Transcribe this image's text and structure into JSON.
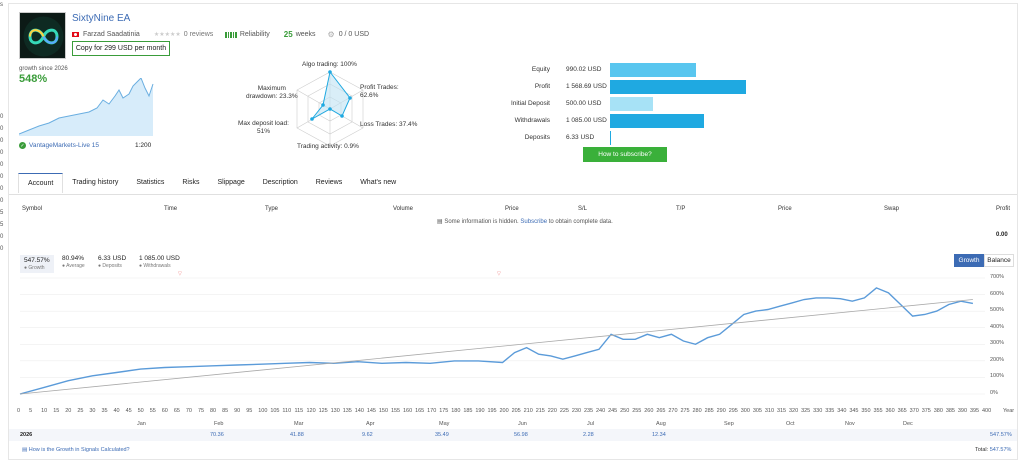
{
  "gutter_labels": [
    "s",
    "0",
    "0",
    "0",
    "0",
    "0",
    "0",
    "0",
    "0",
    "5",
    "5",
    "0",
    "0"
  ],
  "header": {
    "title": "SixtyNine EA",
    "author": "Farzad Saadatinia",
    "reviews": "0 reviews",
    "reliability": "Reliability",
    "weeks_value": "25",
    "weeks_label": "weeks",
    "subscribers": "0 / 0 USD",
    "copy_button": "Copy for 299 USD per month"
  },
  "growth": {
    "label": "growth since 2026",
    "value": "548%"
  },
  "account": {
    "name": "VantageMarkets-Live 15",
    "leverage": "1:200"
  },
  "radar": {
    "algo": "Algo trading: 100%",
    "profit": "Profit Trades:\n62.6%",
    "loss": "Loss Trades: 37.4%",
    "activity": "Trading activity: 0.9%",
    "load": "Max deposit load:\n51%",
    "drawdown": "Maximum\ndrawdown: 23.3%",
    "values": [
      1.0,
      0.626,
      0.374,
      0.009,
      0.51,
      0.233
    ]
  },
  "balance": [
    {
      "label": "Equity",
      "value": "990.02 USD",
      "amount": 990.02,
      "color": "#59c6ef"
    },
    {
      "label": "Profit",
      "value": "1 568.69 USD",
      "amount": 1568.69,
      "color": "#1fa9e1"
    },
    {
      "label": "Initial Deposit",
      "value": "500.00 USD",
      "amount": 500.0,
      "color": "#a7e2f6"
    },
    {
      "label": "Withdrawals",
      "value": "1 085.00 USD",
      "amount": 1085.0,
      "color": "#1fa9e1"
    },
    {
      "label": "Deposits",
      "value": "6.33 USD",
      "amount": 6.33,
      "color": "#1fa9e1"
    }
  ],
  "subscribe": "How to subscribe?",
  "tabs": [
    "Account",
    "Trading history",
    "Statistics",
    "Risks",
    "Slippage",
    "Description",
    "Reviews",
    "What's new"
  ],
  "table": {
    "headers": [
      "Symbol",
      "Time",
      "Type",
      "Volume",
      "Price",
      "S/L",
      "T/P",
      "Price",
      "Swap",
      "Profit"
    ],
    "notice_pre": "Some information is hidden.",
    "notice_link": "Subscribe",
    "notice_post": "to obtain complete data.",
    "total": "0.00"
  },
  "stats": [
    {
      "value": "547.57%",
      "label": "Growth"
    },
    {
      "value": "80.94%",
      "label": "Average"
    },
    {
      "value": "6.33 USD",
      "label": "Deposits"
    },
    {
      "value": "1 085.00 USD",
      "label": "Withdrawals"
    }
  ],
  "chart_toggle": {
    "growth": "Growth",
    "balance": "Balance"
  },
  "chart_data": {
    "type": "line",
    "title": "",
    "xlabel": "",
    "ylabel": "",
    "ylim": [
      0,
      700
    ],
    "y_ticks": [
      "700%",
      "600%",
      "500%",
      "400%",
      "300%",
      "200%",
      "100%",
      "0%"
    ],
    "x_ticks": [
      "0",
      "5",
      "10",
      "15",
      "20",
      "25",
      "30",
      "35",
      "40",
      "45",
      "50",
      "55",
      "60",
      "65",
      "70",
      "75",
      "80",
      "85",
      "90",
      "95",
      "100",
      "105",
      "110",
      "115",
      "120",
      "125",
      "130",
      "135",
      "140",
      "145",
      "150",
      "155",
      "160",
      "165",
      "170",
      "175",
      "180",
      "185",
      "190",
      "195",
      "200",
      "205",
      "210",
      "215",
      "220",
      "225",
      "230",
      "235",
      "240",
      "245",
      "250",
      "255",
      "260",
      "265",
      "270",
      "275",
      "280",
      "285",
      "290",
      "295",
      "300",
      "305",
      "310",
      "315",
      "320",
      "325",
      "330",
      "335",
      "340",
      "345",
      "350",
      "355",
      "360",
      "365",
      "370",
      "375",
      "380",
      "385",
      "390",
      "395",
      "400"
    ],
    "x_axis_label": "Year",
    "months": [
      "Jan",
      "Feb",
      "Mar",
      "Apr",
      "May",
      "Jun",
      "Jul",
      "Aug",
      "Sep",
      "Oct",
      "Nov",
      "Dec"
    ],
    "series": [
      {
        "name": "Growth",
        "x": [
          0,
          10,
          20,
          30,
          40,
          50,
          60,
          70,
          80,
          90,
          100,
          110,
          120,
          130,
          140,
          150,
          160,
          170,
          180,
          190,
          200,
          205,
          210,
          215,
          220,
          225,
          230,
          235,
          240,
          245,
          250,
          255,
          260,
          265,
          270,
          275,
          280,
          285,
          290,
          295,
          300,
          305,
          310,
          315,
          320,
          325,
          330,
          335,
          340,
          345,
          350,
          355,
          360,
          365,
          370,
          375,
          380,
          385,
          390,
          395
        ],
        "values": [
          0,
          40,
          80,
          110,
          130,
          150,
          160,
          165,
          170,
          175,
          180,
          185,
          190,
          185,
          195,
          185,
          190,
          185,
          200,
          200,
          190,
          250,
          280,
          240,
          230,
          210,
          230,
          250,
          270,
          360,
          330,
          330,
          360,
          340,
          360,
          320,
          300,
          340,
          360,
          420,
          480,
          500,
          510,
          530,
          550,
          570,
          580,
          580,
          575,
          560,
          580,
          640,
          610,
          540,
          470,
          480,
          500,
          540,
          560,
          547
        ]
      },
      {
        "name": "Trend",
        "x": [
          0,
          395
        ],
        "values": [
          0,
          570
        ]
      }
    ]
  },
  "year_row": {
    "year": "2026",
    "values": [
      "70.36",
      "41.88",
      "9.62",
      "35.49",
      "56.98",
      "2.28",
      "12.34"
    ],
    "total": "547.57%"
  },
  "footer": {
    "how": "How is the Growth in Signals Calculated?",
    "total_label": "Total:",
    "total_value": "547.57%"
  }
}
